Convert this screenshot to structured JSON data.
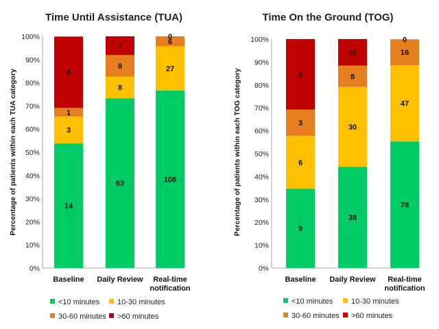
{
  "colors": {
    "lt10": "#00cc66",
    "10to30": "#ffc000",
    "30to60": "#e57f1f",
    "gt60": "#c00000"
  },
  "chart_data": [
    {
      "type": "bar",
      "stacked": "percent",
      "title": "Time Until Assistance (TUA)",
      "xlabel": "",
      "ylabel": "Percentage of patients within each TUA category",
      "ylim": [
        0,
        100
      ],
      "yticks": [
        "0%",
        "10%",
        "20%",
        "30%",
        "40%",
        "50%",
        "60%",
        "70%",
        "80%",
        "90%",
        "100%"
      ],
      "categories": [
        "Baseline",
        "Daily Review",
        "Real-time notification"
      ],
      "category_lines": [
        [
          "Baseline"
        ],
        [
          "Daily Review"
        ],
        [
          "Real-time",
          "notification"
        ]
      ],
      "legend_position": "bottom",
      "series": [
        {
          "name": "<10 minutes",
          "color_key": "lt10",
          "counts": [
            14,
            63,
            108
          ],
          "percent": [
            53.8,
            73.3,
            76.6
          ]
        },
        {
          "name": "10-30 minutes",
          "color_key": "10to30",
          "counts": [
            3,
            8,
            27
          ],
          "percent": [
            11.5,
            9.3,
            19.1
          ]
        },
        {
          "name": "30-60 minutes",
          "color_key": "30to60",
          "counts": [
            1,
            8,
            6
          ],
          "percent": [
            3.8,
            9.3,
            4.3
          ]
        },
        {
          "name": ">60 minutes",
          "color_key": "gt60",
          "counts": [
            8,
            7,
            0
          ],
          "percent": [
            30.8,
            8.1,
            0
          ]
        }
      ]
    },
    {
      "type": "bar",
      "stacked": "percent",
      "title": "Time On the Ground (TOG)",
      "xlabel": "",
      "ylabel": "Percentage of patients within each TOG category",
      "ylim": [
        0,
        100
      ],
      "yticks": [
        "0%",
        "10%",
        "20%",
        "30%",
        "40%",
        "50%",
        "60%",
        "70%",
        "80%",
        "90%",
        "100%"
      ],
      "categories": [
        "Baseline",
        "Daily Review",
        "Real-time notification"
      ],
      "category_lines": [
        [
          "Baseline"
        ],
        [
          "Daily Review"
        ],
        [
          "Real-time",
          "notification"
        ]
      ],
      "legend_position": "bottom",
      "series": [
        {
          "name": "<10 minutes",
          "color_key": "lt10",
          "counts": [
            9,
            38,
            78
          ],
          "percent": [
            34.6,
            44.2,
            55.3
          ]
        },
        {
          "name": "10-30 minutes",
          "color_key": "10to30",
          "counts": [
            6,
            30,
            47
          ],
          "percent": [
            23.1,
            34.9,
            33.3
          ]
        },
        {
          "name": "30-60 minutes",
          "color_key": "30to60",
          "counts": [
            3,
            8,
            16
          ],
          "percent": [
            11.5,
            9.3,
            11.3
          ]
        },
        {
          "name": ">60 minutes",
          "color_key": "gt60",
          "counts": [
            8,
            10,
            0
          ],
          "percent": [
            30.8,
            11.6,
            0
          ]
        }
      ]
    }
  ]
}
